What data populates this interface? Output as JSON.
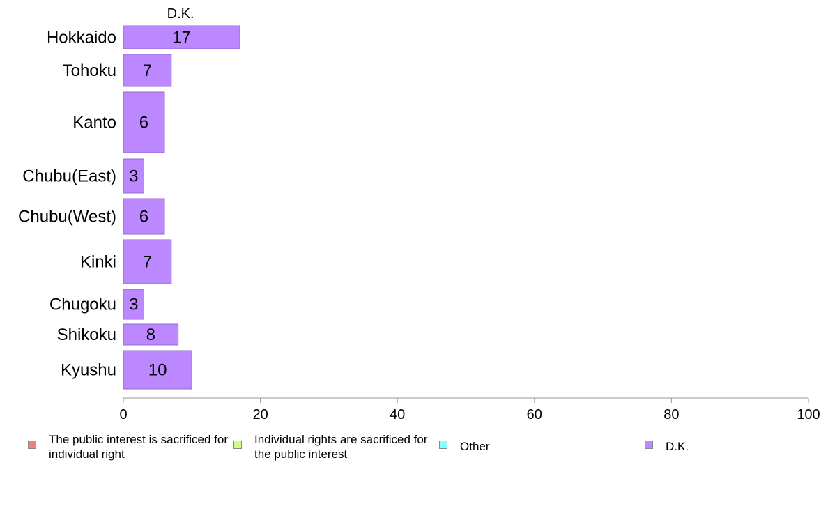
{
  "chart_data": {
    "type": "bar",
    "orientation": "horizontal",
    "title": "D.K.",
    "categories": [
      "Hokkaido",
      "Tohoku",
      "Kanto",
      "Chubu(East)",
      "Chubu(West)",
      "Kinki",
      "Chugoku",
      "Shikoku",
      "Kyushu"
    ],
    "series": [
      {
        "name": "D.K.",
        "values": [
          17,
          7,
          6,
          3,
          6,
          7,
          3,
          8,
          10
        ],
        "color": "#bb88ff"
      }
    ],
    "bar_labels": [
      "17",
      "7",
      "6",
      "3",
      "6",
      "7",
      "3",
      "8",
      "10"
    ],
    "xlim": [
      0,
      100
    ],
    "xticks": [
      0,
      20,
      40,
      60,
      80,
      100
    ],
    "xtick_labels": [
      "0",
      "20",
      "40",
      "60",
      "80",
      "100"
    ],
    "grid": false,
    "legend_position": "bottom",
    "legend": [
      {
        "label": "The public interest is sacrificed for individual right",
        "color": "#f08080"
      },
      {
        "label": "Individual rights are sacrificed for the public interest",
        "color": "#ccff88"
      },
      {
        "label": "Other",
        "color": "#88ffff"
      },
      {
        "label": "D.K.",
        "color": "#bb88ff"
      }
    ]
  }
}
